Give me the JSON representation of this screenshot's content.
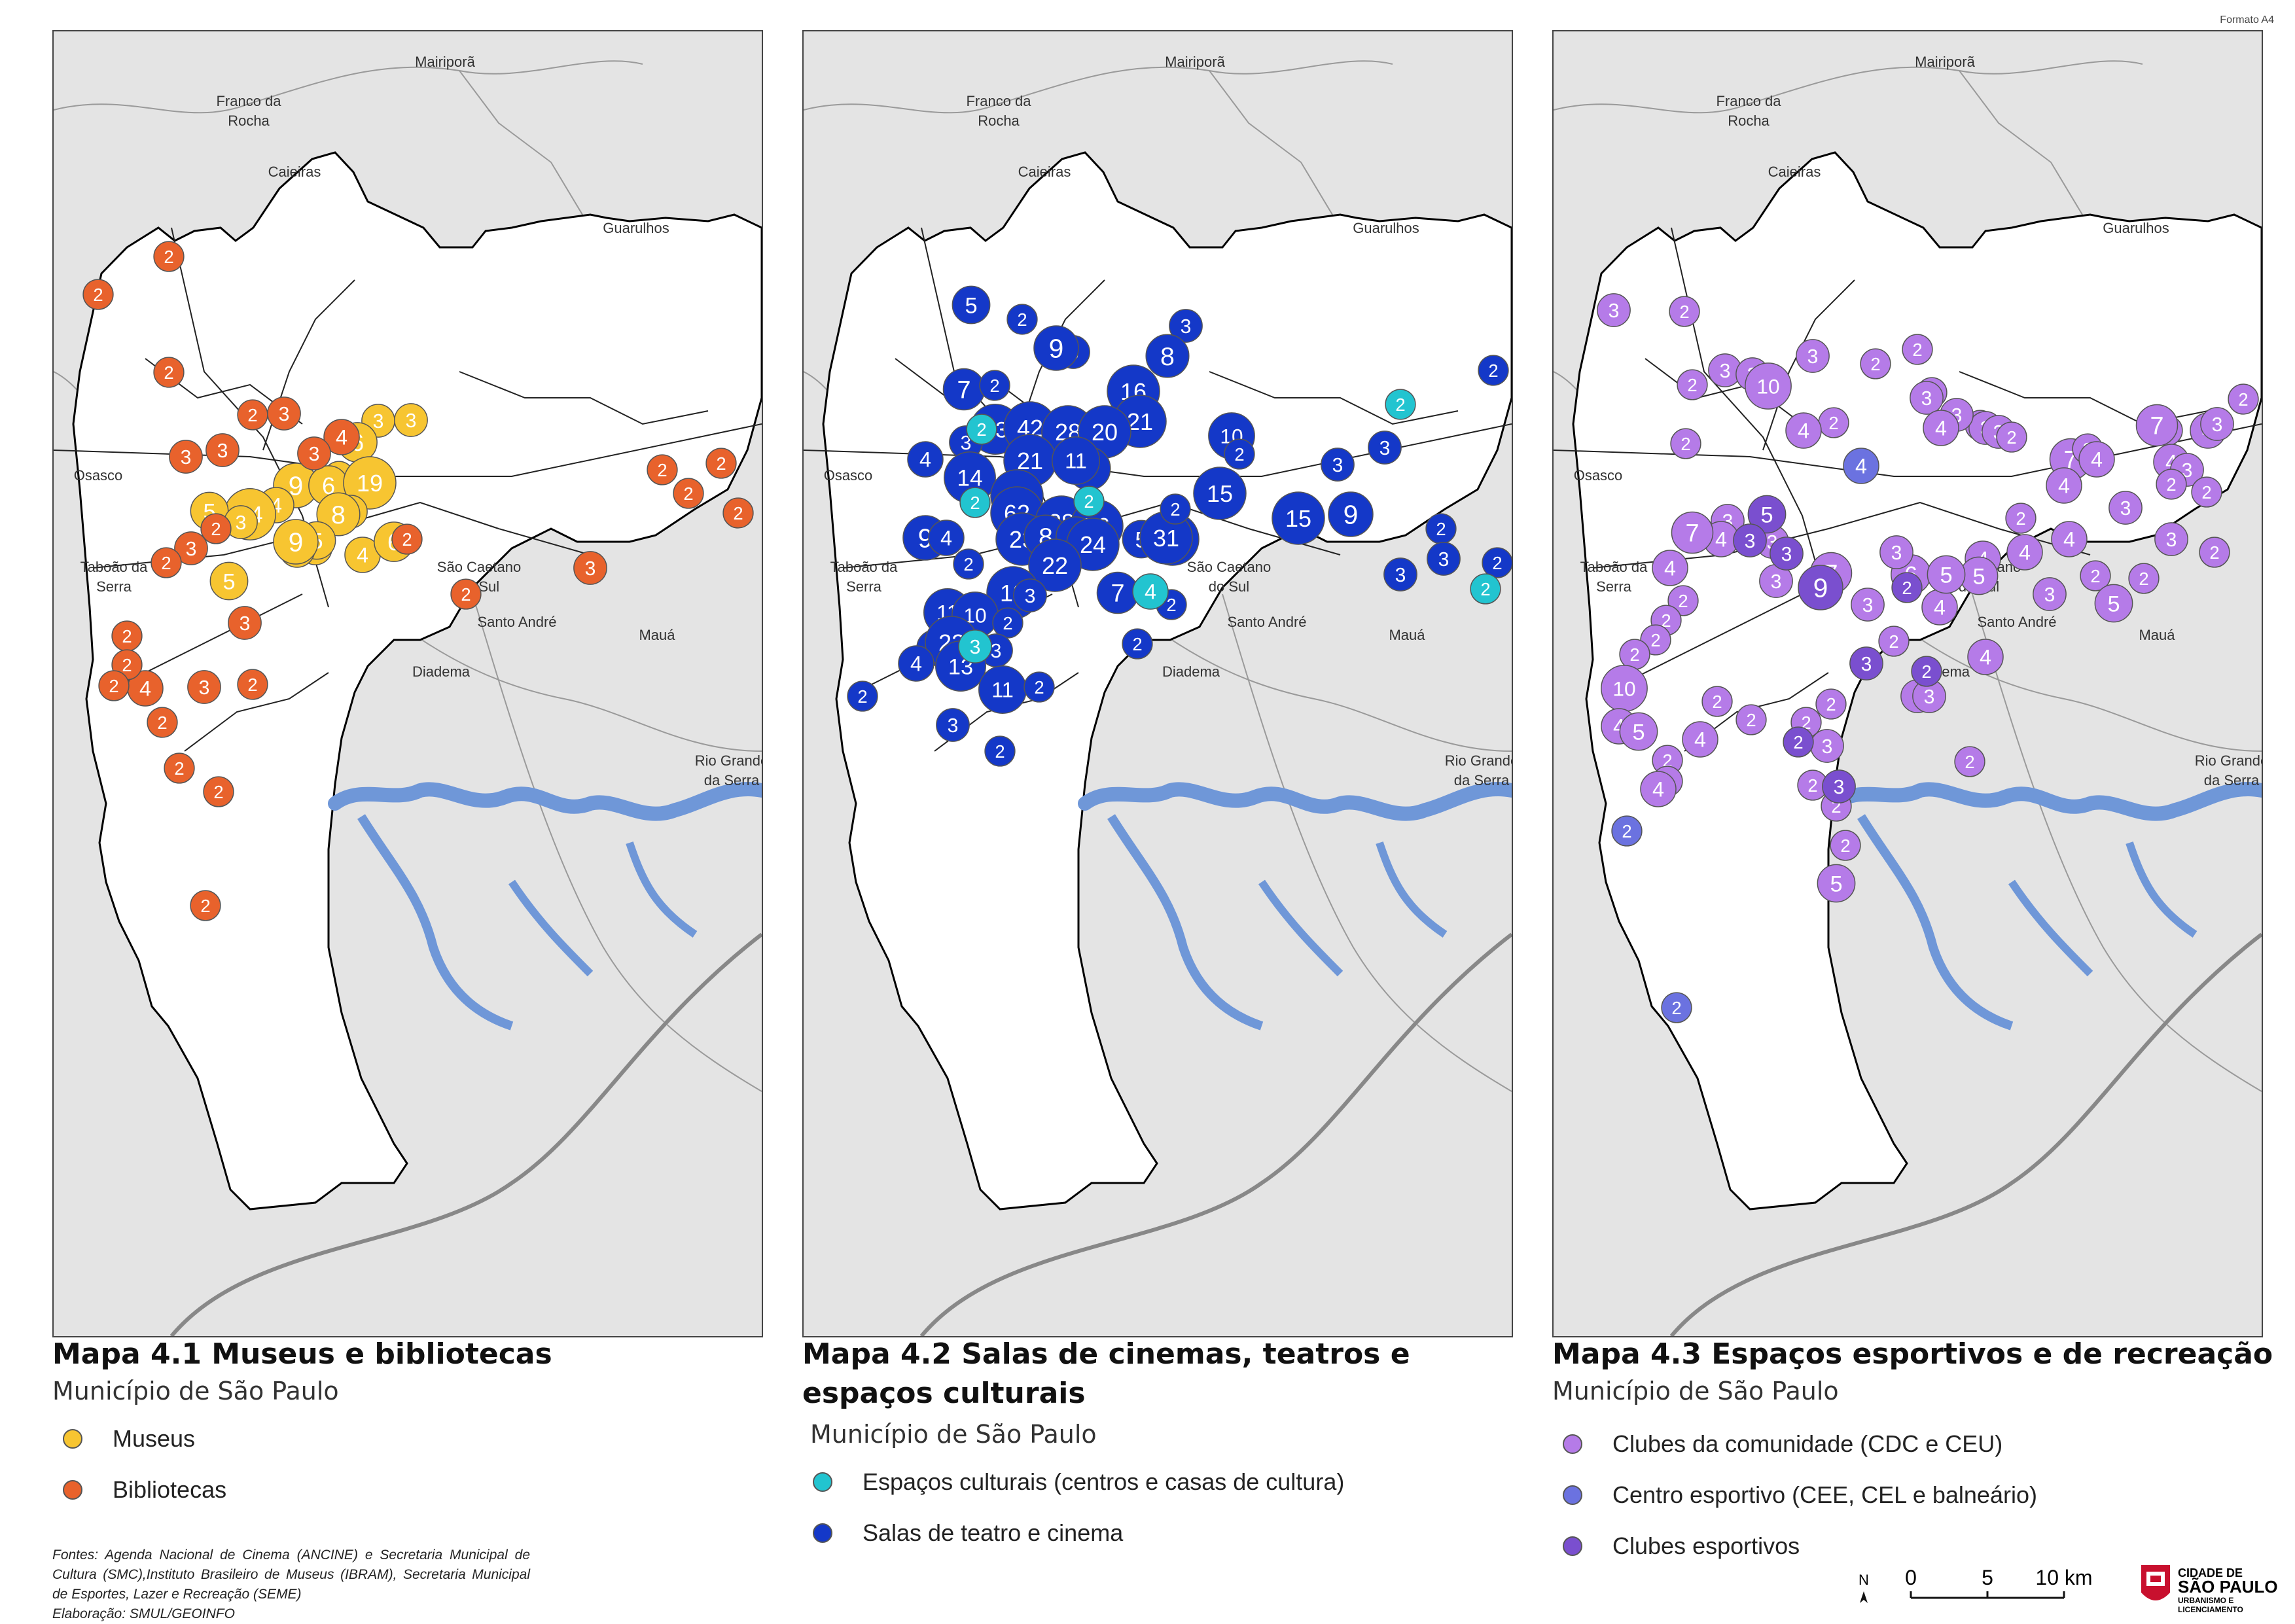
{
  "format_label": "Formato A4",
  "maps": [
    {
      "title": "Mapa 4.1 Museus e bibliotecas",
      "subtitle": "Município de São Paulo",
      "legend": [
        {
          "label": "Museus",
          "color": "#f7c531"
        },
        {
          "label": "Bibliotecas",
          "color": "#e8622c"
        }
      ]
    },
    {
      "title_line1": "Mapa 4.2 Salas de cinemas, teatros e",
      "title_line2": "espaços culturais",
      "subtitle": "Município de São Paulo",
      "legend": [
        {
          "label": "Espaços culturais (centros e casas de cultura)",
          "color": "#22c4d0"
        },
        {
          "label": "Salas de teatro e cinema",
          "color": "#1438c8"
        }
      ]
    },
    {
      "title": "Mapa 4.3 Espaços esportivos e de recreação",
      "subtitle": "Município de São Paulo",
      "legend": [
        {
          "label": "Clubes da comunidade (CDC e CEU)",
          "color": "#b57be8"
        },
        {
          "label": "Centro esportivo (CEE, CEL e balneário)",
          "color": "#6b72e0"
        },
        {
          "label": "Clubes esportivos",
          "color": "#7a4fcf"
        }
      ]
    }
  ],
  "place_labels": [
    "Mairiporã",
    "Franco da Rocha",
    "Caieiras",
    "Guarulhos",
    "Osasco",
    "Taboão da Serra",
    "São Caetano do Sul",
    "Santo André",
    "Mauá",
    "Diadema",
    "Rio Grande da Serra"
  ],
  "map_points": {
    "map1": [
      {
        "t": "m",
        "n": "3"
      },
      {
        "t": "m",
        "n": "2"
      },
      {
        "t": "m",
        "n": "6"
      },
      {
        "t": "m",
        "n": "4"
      },
      {
        "t": "m",
        "n": "3"
      },
      {
        "t": "m",
        "n": "9"
      },
      {
        "t": "m",
        "n": "6"
      },
      {
        "t": "m",
        "n": "19"
      },
      {
        "t": "m",
        "n": "3"
      },
      {
        "t": "m",
        "n": "8"
      },
      {
        "t": "m",
        "n": "3"
      },
      {
        "t": "m",
        "n": "5"
      },
      {
        "t": "m",
        "n": "4"
      },
      {
        "t": "m",
        "n": "14"
      },
      {
        "t": "m",
        "n": "5"
      },
      {
        "t": "m",
        "n": "4"
      },
      {
        "t": "m",
        "n": "9"
      },
      {
        "t": "m",
        "n": "4"
      },
      {
        "t": "m",
        "n": "6"
      },
      {
        "t": "m",
        "n": "5"
      },
      {
        "t": "m",
        "n": "3"
      },
      {
        "t": "b",
        "n": "2"
      },
      {
        "t": "b",
        "n": "2"
      },
      {
        "t": "b",
        "n": "2"
      },
      {
        "t": "b",
        "n": "3"
      },
      {
        "t": "b",
        "n": "3"
      },
      {
        "t": "b",
        "n": "2"
      },
      {
        "t": "b",
        "n": "3"
      },
      {
        "t": "b",
        "n": "4"
      },
      {
        "t": "b",
        "n": "3"
      },
      {
        "t": "b",
        "n": "2"
      },
      {
        "t": "b",
        "n": "3"
      },
      {
        "t": "b",
        "n": "2"
      },
      {
        "t": "b",
        "n": "2"
      },
      {
        "t": "b",
        "n": "3"
      },
      {
        "t": "b",
        "n": "2"
      },
      {
        "t": "b",
        "n": "4"
      },
      {
        "t": "b",
        "n": "2"
      },
      {
        "t": "b",
        "n": "2"
      },
      {
        "t": "b",
        "n": "3"
      },
      {
        "t": "b",
        "n": "2"
      },
      {
        "t": "b",
        "n": "2"
      },
      {
        "t": "b",
        "n": "2"
      },
      {
        "t": "b",
        "n": "2"
      },
      {
        "t": "b",
        "n": "2"
      },
      {
        "t": "b",
        "n": "2"
      },
      {
        "t": "b",
        "n": "3"
      },
      {
        "t": "b",
        "n": "2"
      },
      {
        "t": "b",
        "n": "2"
      },
      {
        "t": "b",
        "n": "2"
      },
      {
        "t": "b",
        "n": "2"
      }
    ],
    "map2": [
      {
        "t": "s",
        "n": "5"
      },
      {
        "t": "s",
        "n": "2"
      },
      {
        "t": "s",
        "n": "3"
      },
      {
        "t": "s",
        "n": "3"
      },
      {
        "t": "s",
        "n": "9"
      },
      {
        "t": "s",
        "n": "8"
      },
      {
        "t": "s",
        "n": "16"
      },
      {
        "t": "s",
        "n": "7"
      },
      {
        "t": "s",
        "n": "2"
      },
      {
        "t": "s",
        "n": "21"
      },
      {
        "t": "s",
        "n": "13"
      },
      {
        "t": "s",
        "n": "42"
      },
      {
        "t": "s",
        "n": "28"
      },
      {
        "t": "s",
        "n": "20"
      },
      {
        "t": "s",
        "n": "3"
      },
      {
        "t": "s",
        "n": "21"
      },
      {
        "t": "s",
        "n": "8"
      },
      {
        "t": "s",
        "n": "11"
      },
      {
        "t": "s",
        "n": "4"
      },
      {
        "t": "s",
        "n": "14"
      },
      {
        "t": "s",
        "n": "39"
      },
      {
        "t": "s",
        "n": "62"
      },
      {
        "t": "s",
        "n": "38"
      },
      {
        "t": "s",
        "n": "56"
      },
      {
        "t": "s",
        "n": "9"
      },
      {
        "t": "s",
        "n": "4"
      },
      {
        "t": "s",
        "n": "2"
      },
      {
        "t": "s",
        "n": "23"
      },
      {
        "t": "s",
        "n": "8"
      },
      {
        "t": "s",
        "n": "6"
      },
      {
        "t": "s",
        "n": "24"
      },
      {
        "t": "s",
        "n": "5"
      },
      {
        "t": "s",
        "n": "16"
      },
      {
        "t": "s",
        "n": "22"
      },
      {
        "t": "s",
        "n": "18"
      },
      {
        "t": "s",
        "n": "3"
      },
      {
        "t": "s",
        "n": "7"
      },
      {
        "t": "s",
        "n": "11"
      },
      {
        "t": "s",
        "n": "10"
      },
      {
        "t": "s",
        "n": "2"
      },
      {
        "t": "s",
        "n": "2"
      },
      {
        "t": "s",
        "n": "4"
      },
      {
        "t": "s",
        "n": "22"
      },
      {
        "t": "s",
        "n": "3"
      },
      {
        "t": "s",
        "n": "4"
      },
      {
        "t": "s",
        "n": "13"
      },
      {
        "t": "s",
        "n": "11"
      },
      {
        "t": "s",
        "n": "2"
      },
      {
        "t": "s",
        "n": "2"
      },
      {
        "t": "s",
        "n": "3"
      },
      {
        "t": "s",
        "n": "2"
      },
      {
        "t": "s",
        "n": "2"
      },
      {
        "t": "s",
        "n": "2"
      },
      {
        "t": "s",
        "n": "31"
      },
      {
        "t": "s",
        "n": "10"
      },
      {
        "t": "s",
        "n": "2"
      },
      {
        "t": "s",
        "n": "15"
      },
      {
        "t": "s",
        "n": "15"
      },
      {
        "t": "s",
        "n": "2"
      },
      {
        "t": "s",
        "n": "9"
      },
      {
        "t": "s",
        "n": "3"
      },
      {
        "t": "s",
        "n": "3"
      },
      {
        "t": "s",
        "n": "2"
      },
      {
        "t": "s",
        "n": "2"
      },
      {
        "t": "s",
        "n": "3"
      },
      {
        "t": "s",
        "n": "3"
      },
      {
        "t": "s",
        "n": "2"
      },
      {
        "t": "c",
        "n": "2"
      },
      {
        "t": "c",
        "n": "2"
      },
      {
        "t": "c",
        "n": "2"
      },
      {
        "t": "c",
        "n": "4"
      },
      {
        "t": "c",
        "n": "2"
      },
      {
        "t": "c",
        "n": "3"
      },
      {
        "t": "c",
        "n": "2"
      }
    ],
    "map3": [
      {
        "t": "a",
        "n": "3"
      },
      {
        "t": "a",
        "n": "2"
      },
      {
        "t": "a",
        "n": "2"
      },
      {
        "t": "a",
        "n": "3"
      },
      {
        "t": "a",
        "n": "3"
      },
      {
        "t": "a",
        "n": "10"
      },
      {
        "t": "a",
        "n": "3"
      },
      {
        "t": "a",
        "n": "2"
      },
      {
        "t": "a",
        "n": "2"
      },
      {
        "t": "a",
        "n": "2"
      },
      {
        "t": "a",
        "n": "3"
      },
      {
        "t": "a",
        "n": "2"
      },
      {
        "t": "a",
        "n": "3"
      },
      {
        "t": "a",
        "n": "3"
      },
      {
        "t": "a",
        "n": "2"
      },
      {
        "t": "a",
        "n": "3"
      },
      {
        "t": "a",
        "n": "4"
      },
      {
        "t": "a",
        "n": "2"
      },
      {
        "t": "a",
        "n": "2"
      },
      {
        "t": "a",
        "n": "4"
      },
      {
        "t": "a",
        "n": "7"
      },
      {
        "t": "a",
        "n": "2"
      },
      {
        "t": "a",
        "n": "4"
      },
      {
        "t": "a",
        "n": "4"
      },
      {
        "t": "a",
        "n": "2"
      },
      {
        "t": "a",
        "n": "7"
      },
      {
        "t": "a",
        "n": "4"
      },
      {
        "t": "a",
        "n": "3"
      },
      {
        "t": "a",
        "n": "4"
      },
      {
        "t": "a",
        "n": "2"
      },
      {
        "t": "a",
        "n": "3"
      },
      {
        "t": "a",
        "n": "2"
      },
      {
        "t": "a",
        "n": "2"
      },
      {
        "t": "a",
        "n": "3"
      },
      {
        "t": "a",
        "n": "2"
      },
      {
        "t": "a",
        "n": "4"
      },
      {
        "t": "a",
        "n": "4"
      },
      {
        "t": "a",
        "n": "4"
      },
      {
        "t": "a",
        "n": "5"
      },
      {
        "t": "a",
        "n": "3"
      },
      {
        "t": "a",
        "n": "2"
      },
      {
        "t": "a",
        "n": "2"
      },
      {
        "t": "a",
        "n": "3"
      },
      {
        "t": "a",
        "n": "2"
      },
      {
        "t": "a",
        "n": "5"
      },
      {
        "t": "a",
        "n": "4"
      },
      {
        "t": "a",
        "n": "6"
      },
      {
        "t": "a",
        "n": "5"
      },
      {
        "t": "a",
        "n": "3"
      },
      {
        "t": "a",
        "n": "3"
      },
      {
        "t": "a",
        "n": "7"
      },
      {
        "t": "a",
        "n": "3"
      },
      {
        "t": "a",
        "n": "3"
      },
      {
        "t": "a",
        "n": "3"
      },
      {
        "t": "a",
        "n": "4"
      },
      {
        "t": "a",
        "n": "7"
      },
      {
        "t": "a",
        "n": "4"
      },
      {
        "t": "a",
        "n": "2"
      },
      {
        "t": "a",
        "n": "2"
      },
      {
        "t": "a",
        "n": "2"
      },
      {
        "t": "a",
        "n": "2"
      },
      {
        "t": "a",
        "n": "10"
      },
      {
        "t": "a",
        "n": "4"
      },
      {
        "t": "a",
        "n": "5"
      },
      {
        "t": "a",
        "n": "4"
      },
      {
        "t": "a",
        "n": "2"
      },
      {
        "t": "a",
        "n": "2"
      },
      {
        "t": "a",
        "n": "4"
      },
      {
        "t": "a",
        "n": "2"
      },
      {
        "t": "a",
        "n": "2"
      },
      {
        "t": "a",
        "n": "2"
      },
      {
        "t": "a",
        "n": "2"
      },
      {
        "t": "a",
        "n": "3"
      },
      {
        "t": "a",
        "n": "2"
      },
      {
        "t": "a",
        "n": "2"
      },
      {
        "t": "a",
        "n": "2"
      },
      {
        "t": "a",
        "n": "5"
      },
      {
        "t": "a",
        "n": "2"
      },
      {
        "t": "a",
        "n": "3"
      },
      {
        "t": "a",
        "n": "3"
      },
      {
        "t": "a",
        "n": "4"
      },
      {
        "t": "a",
        "n": "2"
      },
      {
        "t": "e",
        "n": "2"
      },
      {
        "t": "e",
        "n": "2"
      },
      {
        "t": "e",
        "n": "4"
      },
      {
        "t": "k",
        "n": "2"
      },
      {
        "t": "k",
        "n": "2"
      },
      {
        "t": "k",
        "n": "5"
      },
      {
        "t": "k",
        "n": "3"
      },
      {
        "t": "k",
        "n": "9"
      },
      {
        "t": "k",
        "n": "3"
      },
      {
        "t": "k",
        "n": "2"
      },
      {
        "t": "k",
        "n": "3"
      },
      {
        "t": "k",
        "n": "2"
      },
      {
        "t": "k",
        "n": "3"
      }
    ]
  },
  "sources": {
    "line": "Fontes: Agenda Nacional de Cinema (ANCINE) e Secretaria Municipal de Cultura (SMC),Instituto Brasileiro de Museus (IBRAM), Secretaria Municipal de Esportes, Lazer e Recreação (SEME)",
    "credit": "Elaboração: SMUL/GEOINFO"
  },
  "scale": {
    "north": "N",
    "t0": "0",
    "t5": "5",
    "t10": "10 km"
  },
  "logo": {
    "l1": "CIDADE DE",
    "l2": "SÃO PAULO",
    "l3": "URBANISMO E",
    "l4": "LICENCIAMENTO"
  }
}
